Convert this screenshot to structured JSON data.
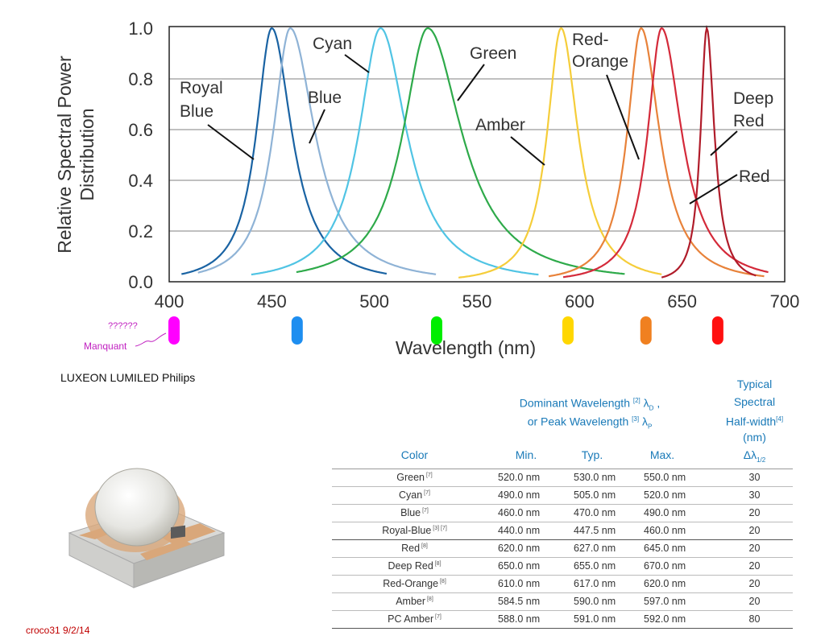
{
  "chart_data": {
    "type": "line",
    "xlabel": "Wavelength (nm)",
    "ylabel": "Relative Spectral Power Distribution",
    "xlim": [
      400,
      700
    ],
    "ylim": [
      0,
      1.0
    ],
    "x_ticks": [
      "400",
      "450",
      "500",
      "550",
      "600",
      "650",
      "700"
    ],
    "y_ticks": [
      "0.0",
      "0.2",
      "0.4",
      "0.6",
      "0.8",
      "1.0"
    ],
    "grid": true,
    "series": [
      {
        "name": "Royal Blue",
        "color": "#1a63a3",
        "peak": 450,
        "hw_left": 10,
        "hw_right": 13,
        "start": 406,
        "end": 506
      },
      {
        "name": "Blue",
        "color": "#8fb3d6",
        "peak": 459,
        "hw_left": 11,
        "hw_right": 16,
        "start": 414,
        "end": 530
      },
      {
        "name": "Cyan",
        "color": "#50c4e4",
        "peak": 503,
        "hw_left": 14,
        "hw_right": 17,
        "start": 440,
        "end": 580
      },
      {
        "name": "Green",
        "color": "#2eaa4a",
        "peak": 526,
        "hw_left": 16,
        "hw_right": 22,
        "start": 462,
        "end": 622
      },
      {
        "name": "Amber",
        "color": "#f5cd3a",
        "peak": 591,
        "hw_left": 9,
        "hw_right": 11,
        "start": 541,
        "end": 640
      },
      {
        "name": "Red-Orange",
        "color": "#e8823a",
        "peak": 630,
        "hw_left": 9,
        "hw_right": 12,
        "start": 585,
        "end": 690
      },
      {
        "name": "Red",
        "color": "#d42a3a",
        "peak": 640,
        "hw_left": 9,
        "hw_right": 13,
        "start": 592,
        "end": 692
      },
      {
        "name": "Deep Red",
        "color": "#b01c2a",
        "peak": 662,
        "hw_left": 4,
        "hw_right": 5,
        "start": 640,
        "end": 686
      }
    ],
    "annotations": [
      {
        "text": "Royal",
        "label_x": 252,
        "label_y": 108,
        "anchor_x": 325,
        "anchor_y": 105
      },
      {
        "text": "Blue",
        "label_x": 252,
        "label_y": 136
      }
    ],
    "labels": {
      "royal_blue_1": "Royal",
      "royal_blue_2": "Blue",
      "blue": "Blue",
      "cyan": "Cyan",
      "green": "Green",
      "amber": "Amber",
      "red_orange_1": "Red-",
      "red_orange_2": "Orange",
      "deep_red_1": "Deep",
      "deep_red_2": "Red",
      "red": "Red"
    },
    "markers": [
      {
        "color": "#ff00ff",
        "nm": 400
      },
      {
        "color": "#1e8ef0",
        "nm": 460
      },
      {
        "color": "#00ee00",
        "nm": 528
      },
      {
        "color": "#ffd700",
        "nm": 592
      },
      {
        "color": "#f08020",
        "nm": 630
      },
      {
        "color": "#ff1010",
        "nm": 665
      }
    ],
    "missing_note": "??????",
    "missing_label": "Manquant"
  },
  "caption": "LUXEON LUMILED Philips",
  "credit": "croco31 9/2/14",
  "table": {
    "header_group": "Dominant Wavelength",
    "header_group_note": "[2]",
    "header_group_symbol": "λ",
    "header_group_sub": "D",
    "header_group_2": "or  Peak Wavelength",
    "header_group_2_note": "[3]",
    "header_group_2_symbol": "λ",
    "header_group_2_sub": "P",
    "header_half_1": "Typical",
    "header_half_2": "Spectral",
    "header_half_3": "Half-width",
    "header_half_note": "[4]",
    "header_half_4": "(nm)",
    "header_half_5": "Δλ",
    "header_half_sub": "1/2",
    "col_color": "Color",
    "col_min": "Min.",
    "col_typ": "Typ.",
    "col_max": "Max.",
    "rows": [
      {
        "color": "Green",
        "note": "[7]",
        "min": "520.0  nm",
        "typ": "530.0 nm",
        "max": "550.0 nm",
        "half": "30"
      },
      {
        "color": "Cyan",
        "note": "[7]",
        "min": "490.0  nm",
        "typ": "505.0 nm",
        "max": "520.0 nm",
        "half": "30"
      },
      {
        "color": "Blue",
        "note": "[7]",
        "min": "460.0  nm",
        "typ": "470.0 nm",
        "max": "490.0 nm",
        "half": "20"
      },
      {
        "color": "Royal-Blue",
        "note": "[3] [7]",
        "min": "440.0  nm",
        "typ": "447.5 nm",
        "max": "460.0 nm",
        "half": "20"
      },
      {
        "color": "Red",
        "note": "[8]",
        "min": "620.0  nm",
        "typ": "627.0 nm",
        "max": "645.0 nm",
        "half": "20"
      },
      {
        "color": "Deep Red",
        "note": "[8]",
        "min": "650.0 nm",
        "typ": "655.0 nm",
        "max": "670.0 nm",
        "half": "20"
      },
      {
        "color": "Red-Orange",
        "note": "[8]",
        "min": "610.0  nm",
        "typ": "617.0 nm",
        "max": "620.0 nm",
        "half": "20"
      },
      {
        "color": "Amber",
        "note": "[8]",
        "min": "584.5  nm",
        "typ": "590.0 nm",
        "max": "597.0 nm",
        "half": "20"
      },
      {
        "color": "PC Amber",
        "note": "[7]",
        "min": "588.0 nm",
        "typ": "591.0 nm",
        "max": "592.0 nm",
        "half": "80"
      }
    ]
  }
}
